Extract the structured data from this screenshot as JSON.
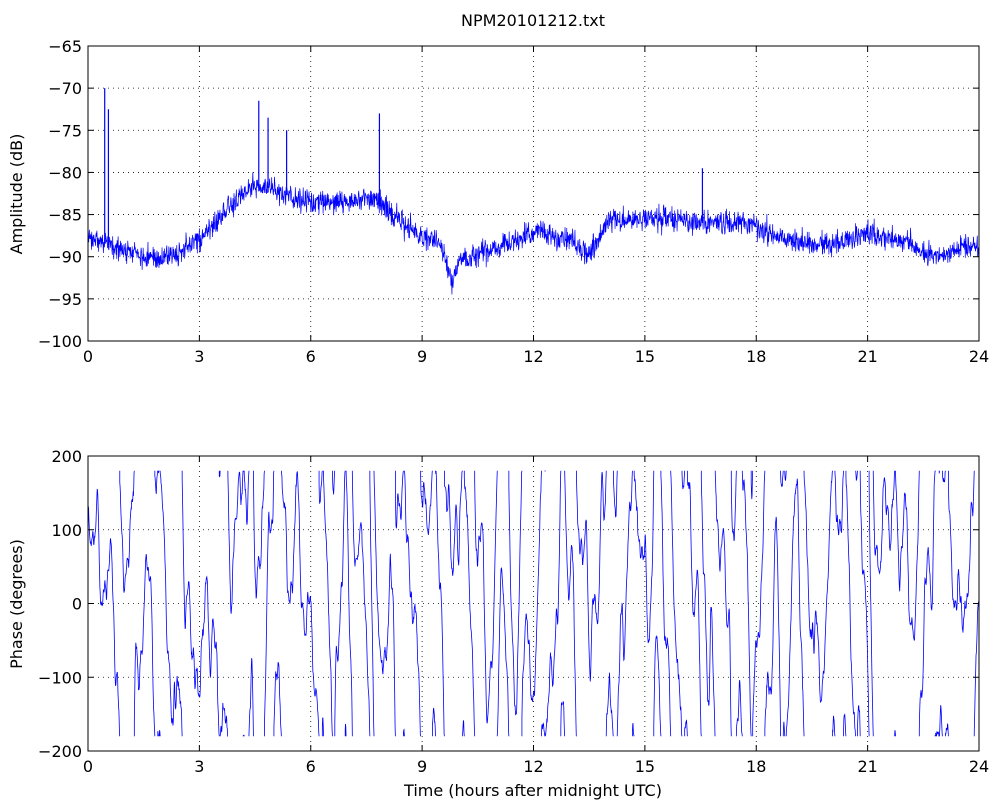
{
  "chart_data": [
    {
      "type": "line",
      "title": "NPM20101212.txt",
      "xlabel": "",
      "ylabel": "Amplitude (dB)",
      "xlim": [
        0,
        24
      ],
      "ylim": [
        -100,
        -65
      ],
      "x_ticks": [
        "0",
        "3",
        "6",
        "9",
        "12",
        "15",
        "18",
        "21",
        "24"
      ],
      "y_ticks": [
        "-65",
        "-70",
        "-75",
        "-80",
        "-85",
        "-90",
        "-95",
        "-100"
      ],
      "grid": true,
      "line_color": "#0000ff",
      "series": [
        {
          "x": [
            0,
            0.25,
            0.5,
            1,
            1.5,
            2,
            2.5,
            3,
            3.5,
            4,
            4.5,
            5,
            5.5,
            6,
            6.5,
            7,
            7.5,
            8,
            8.5,
            9,
            9.5,
            9.8,
            10,
            10.5,
            11,
            11.5,
            12,
            12.5,
            13,
            13.5,
            14,
            14.5,
            15,
            15.5,
            16,
            16.5,
            17,
            17.5,
            18,
            18.5,
            19,
            19.5,
            20,
            20.5,
            21,
            21.5,
            22,
            22.5,
            23,
            23.5,
            24
          ],
          "values": [
            -88,
            -88,
            -88.5,
            -89.5,
            -90,
            -90,
            -89.5,
            -88,
            -86,
            -83,
            -81.5,
            -82,
            -83,
            -83.5,
            -83.5,
            -83.5,
            -83,
            -84,
            -86,
            -87.5,
            -88.5,
            -93,
            -90.5,
            -89.5,
            -89,
            -88,
            -87,
            -87.5,
            -88,
            -90,
            -85.5,
            -85.5,
            -85.5,
            -85.5,
            -85.5,
            -86,
            -86,
            -86,
            -86.5,
            -87.5,
            -88,
            -88.5,
            -88.5,
            -88,
            -87,
            -88,
            -88,
            -89.5,
            -90,
            -89,
            -88.5
          ]
        }
      ],
      "spikes": [
        {
          "x": 0.45,
          "value": -70
        },
        {
          "x": 0.55,
          "value": -72.5
        },
        {
          "x": 4.6,
          "value": -71.5
        },
        {
          "x": 4.85,
          "value": -73.5
        },
        {
          "x": 5.35,
          "value": -75
        },
        {
          "x": 7.85,
          "value": -73
        },
        {
          "x": 16.55,
          "value": -79.5
        }
      ]
    },
    {
      "type": "line",
      "title": "",
      "xlabel": "Time (hours after midnight UTC)",
      "ylabel": "Phase (degrees)",
      "xlim": [
        0,
        24
      ],
      "ylim": [
        -200,
        200
      ],
      "x_ticks": [
        "0",
        "3",
        "6",
        "9",
        "12",
        "15",
        "18",
        "21",
        "24"
      ],
      "y_ticks": [
        "200",
        "100",
        "0",
        "-100",
        "-200"
      ],
      "grid": true,
      "line_color": "#0000ff",
      "wrap_range": [
        -180,
        180
      ]
    }
  ]
}
